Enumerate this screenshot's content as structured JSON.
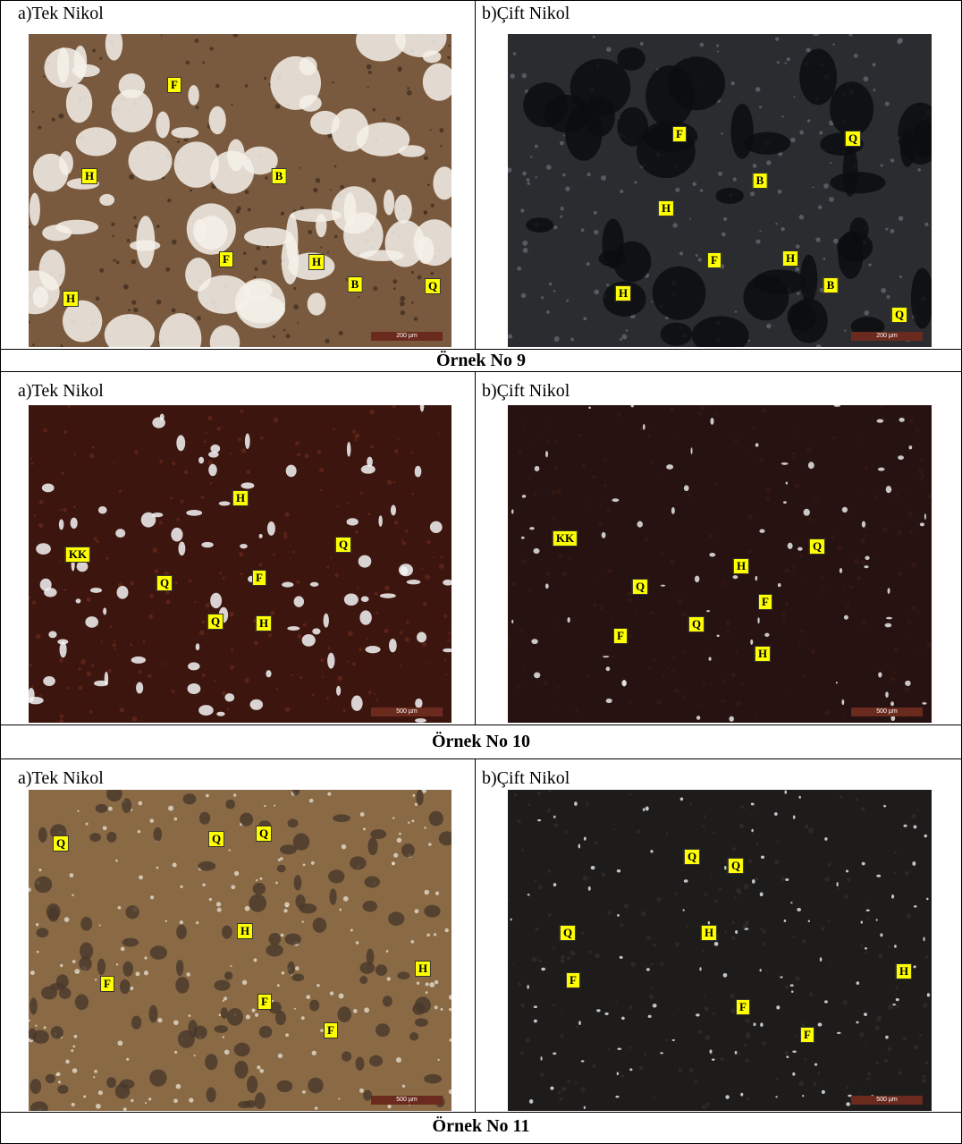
{
  "samples": [
    {
      "caption": "Örnek No 9",
      "panels": [
        {
          "heading": "a)Tek Nikol",
          "labels": [
            "F",
            "H",
            "B",
            "F",
            "H",
            "B",
            "Q",
            "H"
          ],
          "scale_bar": "200 µm"
        },
        {
          "heading": "b)Çift Nikol",
          "labels": [
            "F",
            "Q",
            "B",
            "H",
            "F",
            "H",
            "B",
            "H",
            "Q"
          ],
          "scale_bar": "200 µm"
        }
      ]
    },
    {
      "caption": "Örnek No 10",
      "panels": [
        {
          "heading": "a)Tek Nikol",
          "labels": [
            "H",
            "KK",
            "Q",
            "F",
            "Q",
            "Q",
            "H"
          ],
          "scale_bar": "500 µm"
        },
        {
          "heading": "b)Çift Nikol",
          "labels": [
            "KK",
            "Q",
            "H",
            "Q",
            "F",
            "Q",
            "F",
            "H"
          ],
          "scale_bar": "500 µm"
        }
      ]
    },
    {
      "caption": "Örnek No 11",
      "panels": [
        {
          "heading": "a)Tek Nikol",
          "labels": [
            "Q",
            "Q",
            "Q",
            "H",
            "H",
            "F",
            "F",
            "F"
          ],
          "scale_bar": "500 µm"
        },
        {
          "heading": "b)Çift Nikol",
          "labels": [
            "Q",
            "Q",
            "Q",
            "H",
            "H",
            "F",
            "F",
            "F"
          ],
          "scale_bar": "500 µm"
        }
      ]
    }
  ]
}
